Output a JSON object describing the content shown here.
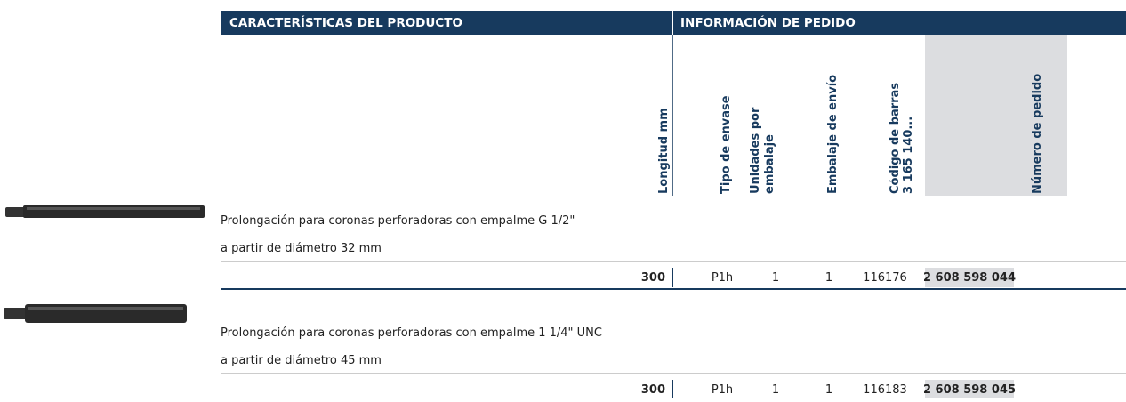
{
  "header": {
    "product": "CARACTERÍSTICAS DEL PRODUCTO",
    "order": "INFORMACIÓN DE PEDIDO"
  },
  "columns": [
    {
      "lines": [
        "Longitud mm"
      ]
    },
    {
      "lines": [
        "Tipo de envase"
      ]
    },
    {
      "lines": [
        "Unidades por",
        "embalaje"
      ]
    },
    {
      "lines": [
        "Embalaje de envío"
      ]
    },
    {
      "lines": [
        "Código de barras",
        "3 165 140..."
      ]
    },
    {
      "lines": [
        "Número de pedido"
      ]
    }
  ],
  "products": [
    {
      "description": "Prolongación para coronas perforadoras con empalme G 1/2\"",
      "detail": "a partir de diámetro 32 mm",
      "cells": [
        "300",
        "P1h",
        "1",
        "1",
        "116176",
        "2 608 598 044"
      ]
    },
    {
      "description": "Prolongación para coronas perforadoras con empalme 1 1/4\" UNC",
      "detail": "a partir de diámetro 45 mm",
      "cells": [
        "300",
        "P1h",
        "1",
        "1",
        "116183",
        "2 608 598 045"
      ]
    }
  ]
}
